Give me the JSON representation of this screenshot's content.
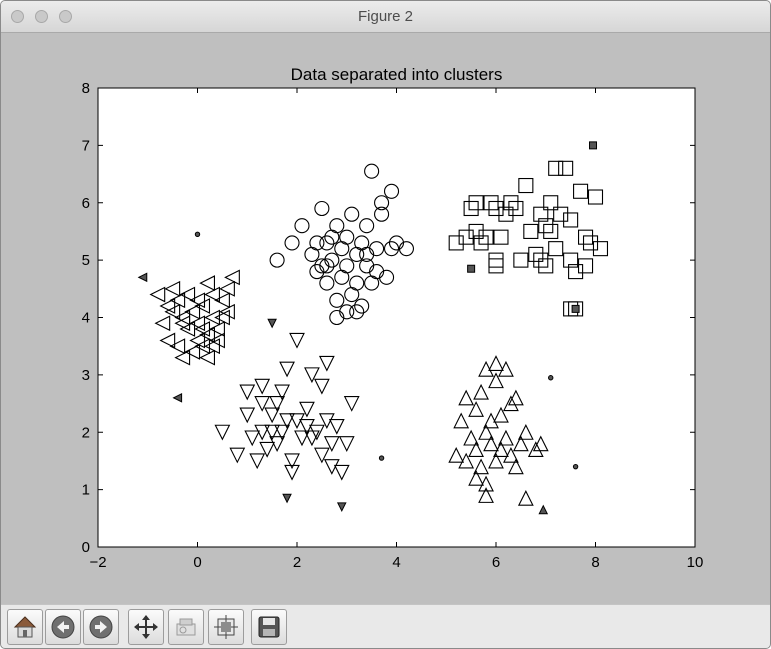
{
  "window": {
    "title": "Figure 2"
  },
  "toolbar": {
    "buttons": [
      {
        "name": "home-icon"
      },
      {
        "name": "back-icon"
      },
      {
        "name": "forward-icon"
      },
      {
        "name": "pan-icon"
      },
      {
        "name": "zoom-icon"
      },
      {
        "name": "subplots-icon"
      },
      {
        "name": "save-icon"
      }
    ]
  },
  "chart_data": {
    "type": "scatter",
    "title": "Data separated into clusters",
    "xlabel": "",
    "ylabel": "",
    "xlim": [
      -2,
      10
    ],
    "ylim": [
      0,
      8
    ],
    "xticks": [
      -2,
      0,
      2,
      4,
      6,
      8,
      10
    ],
    "yticks": [
      0,
      1,
      2,
      3,
      4,
      5,
      6,
      7,
      8
    ],
    "grid": false,
    "series": [
      {
        "marker": "triangle-left",
        "points": [
          [
            -0.8,
            4.4
          ],
          [
            -0.6,
            4.2
          ],
          [
            -0.5,
            4.5
          ],
          [
            -0.4,
            4.3
          ],
          [
            -0.3,
            4.0
          ],
          [
            -0.2,
            3.8
          ],
          [
            -0.1,
            4.1
          ],
          [
            0.0,
            3.9
          ],
          [
            0.1,
            4.2
          ],
          [
            0.2,
            3.7
          ],
          [
            0.3,
            4.0
          ],
          [
            0.4,
            3.6
          ],
          [
            0.5,
            4.3
          ],
          [
            0.6,
            4.5
          ],
          [
            0.7,
            4.7
          ],
          [
            -0.7,
            3.9
          ],
          [
            -0.6,
            3.6
          ],
          [
            -0.4,
            3.5
          ],
          [
            -0.3,
            3.3
          ],
          [
            -0.1,
            3.4
          ],
          [
            0.0,
            3.6
          ],
          [
            0.1,
            3.5
          ],
          [
            0.2,
            3.3
          ],
          [
            0.3,
            3.5
          ],
          [
            0.4,
            3.8
          ],
          [
            0.5,
            4.0
          ],
          [
            -0.2,
            4.4
          ],
          [
            0.0,
            4.3
          ],
          [
            0.2,
            4.6
          ],
          [
            0.3,
            4.4
          ],
          [
            -0.5,
            4.1
          ],
          [
            -0.3,
            3.9
          ],
          [
            0.1,
            3.8
          ],
          [
            0.6,
            4.1
          ]
        ]
      },
      {
        "marker": "circle",
        "points": [
          [
            1.6,
            5.0
          ],
          [
            1.9,
            5.3
          ],
          [
            2.1,
            5.6
          ],
          [
            2.3,
            5.1
          ],
          [
            2.4,
            4.8
          ],
          [
            2.5,
            5.9
          ],
          [
            2.5,
            4.9
          ],
          [
            2.6,
            5.3
          ],
          [
            2.6,
            4.6
          ],
          [
            2.7,
            5.0
          ],
          [
            2.8,
            5.6
          ],
          [
            2.8,
            4.3
          ],
          [
            2.9,
            5.2
          ],
          [
            2.9,
            4.7
          ],
          [
            3.0,
            5.4
          ],
          [
            3.0,
            4.9
          ],
          [
            3.1,
            4.4
          ],
          [
            3.1,
            5.8
          ],
          [
            3.2,
            5.1
          ],
          [
            3.2,
            4.6
          ],
          [
            3.3,
            5.3
          ],
          [
            3.3,
            4.2
          ],
          [
            3.4,
            4.9
          ],
          [
            3.4,
            5.6
          ],
          [
            3.5,
            4.6
          ],
          [
            3.5,
            6.55
          ],
          [
            3.6,
            5.2
          ],
          [
            3.6,
            4.8
          ],
          [
            3.7,
            6.0
          ],
          [
            3.7,
            5.8
          ],
          [
            3.8,
            4.7
          ],
          [
            3.9,
            6.2
          ],
          [
            3.9,
            5.2
          ],
          [
            4.0,
            5.3
          ],
          [
            4.2,
            5.2
          ],
          [
            2.4,
            5.3
          ],
          [
            2.7,
            5.4
          ],
          [
            3.0,
            4.1
          ],
          [
            3.2,
            4.1
          ],
          [
            2.8,
            4.0
          ],
          [
            2.6,
            4.9
          ],
          [
            3.4,
            5.1
          ]
        ]
      },
      {
        "marker": "square",
        "points": [
          [
            5.2,
            5.3
          ],
          [
            5.4,
            5.4
          ],
          [
            5.5,
            5.9
          ],
          [
            5.6,
            6.0
          ],
          [
            5.6,
            5.5
          ],
          [
            5.7,
            5.3
          ],
          [
            5.8,
            5.4
          ],
          [
            6.0,
            5.0
          ],
          [
            6.0,
            5.9
          ],
          [
            6.1,
            5.4
          ],
          [
            6.2,
            5.8
          ],
          [
            6.3,
            6.0
          ],
          [
            6.5,
            5.0
          ],
          [
            6.6,
            6.3
          ],
          [
            6.7,
            5.5
          ],
          [
            6.8,
            5.1
          ],
          [
            6.9,
            5.8
          ],
          [
            7.0,
            5.6
          ],
          [
            7.0,
            4.9
          ],
          [
            7.1,
            5.5
          ],
          [
            7.1,
            6.0
          ],
          [
            7.2,
            5.2
          ],
          [
            7.2,
            6.6
          ],
          [
            7.3,
            5.8
          ],
          [
            7.4,
            6.6
          ],
          [
            7.5,
            5.7
          ],
          [
            7.5,
            5.0
          ],
          [
            7.6,
            4.8
          ],
          [
            7.7,
            6.2
          ],
          [
            7.8,
            5.4
          ],
          [
            7.8,
            4.9
          ],
          [
            7.9,
            5.3
          ],
          [
            8.0,
            6.1
          ],
          [
            8.1,
            5.2
          ],
          [
            7.5,
            4.15
          ],
          [
            6.9,
            5.0
          ],
          [
            6.4,
            5.9
          ],
          [
            5.9,
            6.0
          ],
          [
            6.0,
            4.9
          ],
          [
            7.6,
            4.15
          ]
        ]
      },
      {
        "marker": "triangle-down",
        "points": [
          [
            0.5,
            2.0
          ],
          [
            0.8,
            1.6
          ],
          [
            1.0,
            2.3
          ],
          [
            1.1,
            1.9
          ],
          [
            1.2,
            1.5
          ],
          [
            1.3,
            2.0
          ],
          [
            1.3,
            2.5
          ],
          [
            1.4,
            1.7
          ],
          [
            1.5,
            2.0
          ],
          [
            1.5,
            2.3
          ],
          [
            1.6,
            2.5
          ],
          [
            1.6,
            1.8
          ],
          [
            1.7,
            2.0
          ],
          [
            1.8,
            2.2
          ],
          [
            1.8,
            3.1
          ],
          [
            1.9,
            1.5
          ],
          [
            1.9,
            1.3
          ],
          [
            2.0,
            2.2
          ],
          [
            2.1,
            1.9
          ],
          [
            2.2,
            2.1
          ],
          [
            2.3,
            1.9
          ],
          [
            2.4,
            2.0
          ],
          [
            2.5,
            1.6
          ],
          [
            2.5,
            2.8
          ],
          [
            2.6,
            2.2
          ],
          [
            2.7,
            1.8
          ],
          [
            2.7,
            1.4
          ],
          [
            2.8,
            2.1
          ],
          [
            2.9,
            1.3
          ],
          [
            3.0,
            1.8
          ],
          [
            3.1,
            2.5
          ],
          [
            2.3,
            3.0
          ],
          [
            2.0,
            3.6
          ],
          [
            2.6,
            3.2
          ],
          [
            1.3,
            2.8
          ],
          [
            1.0,
            2.7
          ],
          [
            2.2,
            2.4
          ],
          [
            1.7,
            2.7
          ]
        ]
      },
      {
        "marker": "triangle-up",
        "points": [
          [
            5.2,
            1.6
          ],
          [
            5.3,
            2.2
          ],
          [
            5.4,
            1.5
          ],
          [
            5.5,
            1.9
          ],
          [
            5.6,
            2.4
          ],
          [
            5.6,
            1.7
          ],
          [
            5.7,
            1.4
          ],
          [
            5.7,
            2.7
          ],
          [
            5.8,
            2.0
          ],
          [
            5.8,
            1.1
          ],
          [
            5.9,
            1.8
          ],
          [
            5.9,
            2.2
          ],
          [
            6.0,
            1.5
          ],
          [
            6.0,
            2.9
          ],
          [
            6.1,
            1.7
          ],
          [
            6.1,
            2.3
          ],
          [
            6.2,
            3.1
          ],
          [
            6.2,
            1.9
          ],
          [
            6.3,
            1.6
          ],
          [
            6.3,
            2.5
          ],
          [
            6.4,
            1.4
          ],
          [
            6.5,
            1.8
          ],
          [
            6.6,
            2.0
          ],
          [
            6.8,
            1.7
          ],
          [
            6.9,
            1.8
          ],
          [
            5.4,
            2.6
          ],
          [
            5.8,
            3.1
          ],
          [
            6.0,
            3.2
          ],
          [
            5.6,
            1.2
          ],
          [
            5.8,
            0.9
          ],
          [
            6.6,
            0.85
          ],
          [
            6.4,
            2.6
          ]
        ]
      },
      {
        "marker": "dot-outlier",
        "points": [
          [
            0.0,
            5.45
          ],
          [
            3.7,
            1.55
          ],
          [
            7.1,
            2.95
          ],
          [
            7.6,
            1.4
          ]
        ]
      },
      {
        "marker": "filled-triangle-left",
        "points": [
          [
            -1.1,
            4.7
          ],
          [
            -0.4,
            2.6
          ]
        ]
      },
      {
        "marker": "filled-square",
        "points": [
          [
            7.95,
            7.0
          ],
          [
            5.5,
            4.85
          ],
          [
            7.6,
            4.15
          ]
        ]
      },
      {
        "marker": "filled-triangle-down",
        "points": [
          [
            1.5,
            3.9
          ],
          [
            1.8,
            0.85
          ],
          [
            2.9,
            0.7
          ]
        ]
      },
      {
        "marker": "filled-triangle-up",
        "points": [
          [
            6.95,
            0.65
          ]
        ]
      }
    ]
  }
}
